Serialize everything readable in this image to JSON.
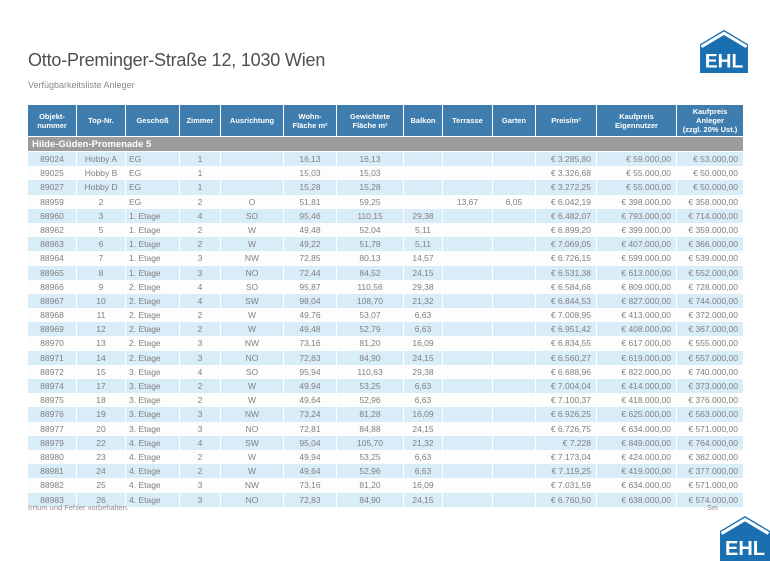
{
  "page": {
    "title": "Otto-Preminger-Straße 12, 1030 Wien",
    "subtitle": "Verfügbarkeitsliste Anleger",
    "footer_note": "Irrtum und Fehler vorbehalten.",
    "page_label": "Sei",
    "logo_text": "EHL"
  },
  "colors": {
    "header_blue": "#3e7dae",
    "section_gray": "#9c9c9c",
    "stripe_blue": "#d9edf8",
    "logo_blue": "#1a6fb0"
  },
  "table": {
    "section_title": "Hilde-Güden-Promenade 5",
    "header_labels": {
      "objektnummer": "Objekt-\nnummer",
      "top_nr": "Top-Nr.",
      "geschoss": "Geschoß",
      "zimmer": "Zimmer",
      "ausrichtung": "Ausrichtung",
      "wohnflaeche": "Wohn-\nFläche m²",
      "gew_flaeche": "Gewichtete\nFläche m²",
      "balkon": "Balkon",
      "terrasse": "Terrasse",
      "garten": "Garten",
      "preis_m2": "Preis/m²",
      "kp_eigennutzer": "Kaufpreis\nEigennutzer",
      "kp_anleger": "Kaufpreis\nAnleger\n(zzgl. 20% Ust.)"
    },
    "rows": [
      [
        "89024",
        "Hobby A",
        "EG",
        "1",
        "",
        "16,13",
        "16,13",
        "",
        "",
        "",
        "€ 3.285,80",
        "€ 59.000,00",
        "€ 53.000,00"
      ],
      [
        "89025",
        "Hobby B",
        "EG",
        "1",
        "",
        "15,03",
        "15,03",
        "",
        "",
        "",
        "€ 3.326,68",
        "€ 55.000,00",
        "€ 50.000,00"
      ],
      [
        "89027",
        "Hobby D",
        "EG",
        "1",
        "",
        "15,28",
        "15,28",
        "",
        "",
        "",
        "€ 3.272,25",
        "€ 55.000,00",
        "€ 50.000,00"
      ],
      [
        "88959",
        "2",
        "EG",
        "2",
        "O",
        "51,81",
        "59,25",
        "",
        "13,67",
        "6,05",
        "€ 6.042,19",
        "€ 398.000,00",
        "€ 358.000,00"
      ],
      [
        "88960",
        "3",
        "1. Etage",
        "4",
        "SO",
        "95,46",
        "110,15",
        "29,38",
        "",
        "",
        "€ 6.482,07",
        "€ 793.000,00",
        "€ 714.000,00"
      ],
      [
        "88962",
        "5",
        "1. Etage",
        "2",
        "W",
        "49,48",
        "52,04",
        "5,11",
        "",
        "",
        "€ 6.899,20",
        "€ 399.000,00",
        "€ 359.000,00"
      ],
      [
        "88963",
        "6",
        "1. Etage",
        "2",
        "W",
        "49,22",
        "51,78",
        "5,11",
        "",
        "",
        "€ 7.069,05",
        "€ 407.000,00",
        "€ 366.000,00"
      ],
      [
        "88964",
        "7",
        "1. Etage",
        "3",
        "NW",
        "72,85",
        "80,13",
        "14,57",
        "",
        "",
        "€ 6.726,15",
        "€ 599.000,00",
        "€ 539.000,00"
      ],
      [
        "88965",
        "8",
        "1. Etage",
        "3",
        "NO",
        "72,44",
        "84,52",
        "24,15",
        "",
        "",
        "€ 6.531,38",
        "€ 613.000,00",
        "€ 552.000,00"
      ],
      [
        "88966",
        "9",
        "2. Etage",
        "4",
        "SO",
        "95,87",
        "110,56",
        "29,38",
        "",
        "",
        "€ 6.584,66",
        "€ 809.000,00",
        "€ 728.000,00"
      ],
      [
        "88967",
        "10",
        "2. Etage",
        "4",
        "SW",
        "98,04",
        "108,70",
        "21,32",
        "",
        "",
        "€ 6.844,53",
        "€ 827.000,00",
        "€ 744.000,00"
      ],
      [
        "88968",
        "11",
        "2. Etage",
        "2",
        "W",
        "49,76",
        "53,07",
        "6,63",
        "",
        "",
        "€ 7.008,95",
        "€ 413.000,00",
        "€ 372.000,00"
      ],
      [
        "88969",
        "12",
        "2. Etage",
        "2",
        "W",
        "49,48",
        "52,79",
        "6,63",
        "",
        "",
        "€ 6.951,42",
        "€ 408.000,00",
        "€ 367.000,00"
      ],
      [
        "88970",
        "13",
        "2. Etage",
        "3",
        "NW",
        "73,16",
        "81,20",
        "16,09",
        "",
        "",
        "€ 6.834,55",
        "€ 617.000,00",
        "€ 555.000,00"
      ],
      [
        "88971",
        "14",
        "2. Etage",
        "3",
        "NO",
        "72,83",
        "84,90",
        "24,15",
        "",
        "",
        "€ 6.560,27",
        "€ 619.000,00",
        "€ 557.000,00"
      ],
      [
        "88972",
        "15",
        "3. Etage",
        "4",
        "SO",
        "95,94",
        "110,63",
        "29,38",
        "",
        "",
        "€ 6.688,96",
        "€ 822.000,00",
        "€ 740.000,00"
      ],
      [
        "88974",
        "17",
        "3. Etage",
        "2",
        "W",
        "49,94",
        "53,25",
        "6,63",
        "",
        "",
        "€ 7.004,04",
        "€ 414.000,00",
        "€ 373.000,00"
      ],
      [
        "88975",
        "18",
        "3. Etage",
        "2",
        "W",
        "49,64",
        "52,96",
        "6,63",
        "",
        "",
        "€ 7.100,37",
        "€ 418.000,00",
        "€ 376.000,00"
      ],
      [
        "88976",
        "19",
        "3. Etage",
        "3",
        "NW",
        "73,24",
        "81,28",
        "16,09",
        "",
        "",
        "€ 6.926,25",
        "€ 625.000,00",
        "€ 563.000,00"
      ],
      [
        "88977",
        "20",
        "3. Etage",
        "3",
        "NO",
        "72,81",
        "84,88",
        "24,15",
        "",
        "",
        "€ 6.726,75",
        "€ 634.000,00",
        "€ 571.000,00"
      ],
      [
        "88979",
        "22",
        "4. Etage",
        "4",
        "SW",
        "95,04",
        "105,70",
        "21,32",
        "",
        "",
        "€ 7.228",
        "€ 849.000,00",
        "€ 764.000,00"
      ],
      [
        "88980",
        "23",
        "4. Etage",
        "2",
        "W",
        "49,94",
        "53,25",
        "6,63",
        "",
        "",
        "€ 7.173,04",
        "€ 424.000,00",
        "€ 382.000,00"
      ],
      [
        "88981",
        "24",
        "4. Etage",
        "2",
        "W",
        "49,64",
        "52,96",
        "6,63",
        "",
        "",
        "€ 7.119,25",
        "€ 419.000,00",
        "€ 377.000,00"
      ],
      [
        "88982",
        "25",
        "4. Etage",
        "3",
        "NW",
        "73,16",
        "81,20",
        "16,09",
        "",
        "",
        "€ 7.031,59",
        "€ 634.000,00",
        "€ 571.000,00"
      ],
      [
        "88983",
        "26",
        "4. Etage",
        "3",
        "NO",
        "72,83",
        "84,90",
        "24,15",
        "",
        "",
        "€ 6.760,50",
        "€ 638.000,00",
        "€ 574.000,00"
      ]
    ]
  }
}
